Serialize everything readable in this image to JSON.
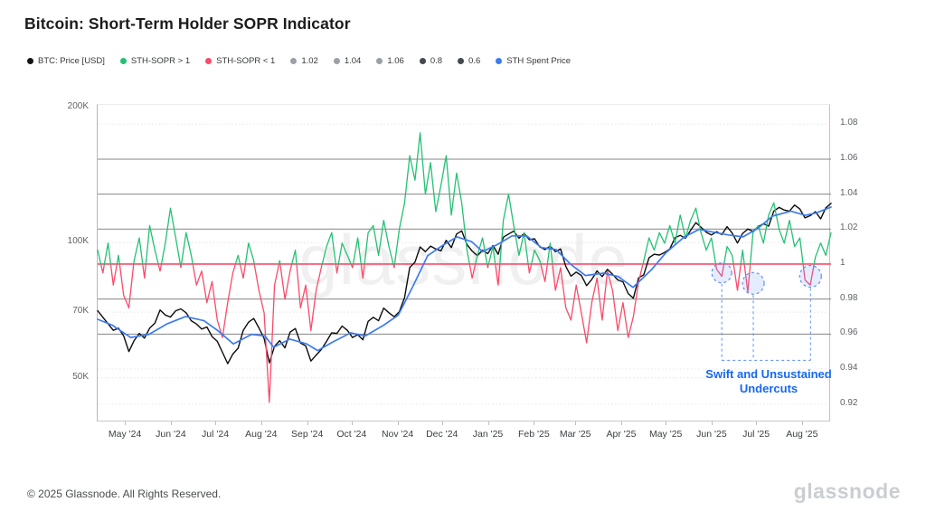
{
  "title": "Bitcoin: Short-Term Holder SOPR Indicator",
  "watermark": "glassnode",
  "footer": {
    "copyright": "© 2025 Glassnode. All Rights Reserved.",
    "brand": "glassnode"
  },
  "legend": [
    {
      "label": "BTC: Price [USD]",
      "color": "#141414"
    },
    {
      "label": "STH-SOPR > 1",
      "color": "#24c173"
    },
    {
      "label": "STH-SOPR < 1",
      "color": "#fb4a6a"
    },
    {
      "label": "1.02",
      "color": "#9aa0a6"
    },
    {
      "label": "1.04",
      "color": "#9aa0a6"
    },
    {
      "label": "1.06",
      "color": "#9aa0a6"
    },
    {
      "label": "0.8",
      "color": "#45494d"
    },
    {
      "label": "0.6",
      "color": "#45494d"
    },
    {
      "label": "STH Spent Price",
      "color": "#3d7bf0"
    }
  ],
  "annotation": {
    "line1": "Swift and Unsustained",
    "line2": "Undercuts",
    "color": "#1668f2"
  },
  "chart_data": {
    "type": "line",
    "title": "Bitcoin: Short-Term Holder SOPR Indicator",
    "x_range": [
      "Apr 2024",
      "Aug 2025"
    ],
    "x_ticks": [
      {
        "label": "May '24",
        "f": 0.0384
      },
      {
        "label": "Jun '24",
        "f": 0.101
      },
      {
        "label": "Jul '24",
        "f": 0.1616
      },
      {
        "label": "Aug '24",
        "f": 0.2242
      },
      {
        "label": "Sep '24",
        "f": 0.2869
      },
      {
        "label": "Oct '24",
        "f": 0.3475
      },
      {
        "label": "Nov '24",
        "f": 0.4101
      },
      {
        "label": "Dec '24",
        "f": 0.4707
      },
      {
        "label": "Jan '25",
        "f": 0.5333
      },
      {
        "label": "Feb '25",
        "f": 0.596
      },
      {
        "label": "Mar '25",
        "f": 0.6525
      },
      {
        "label": "Apr '25",
        "f": 0.7152
      },
      {
        "label": "May '25",
        "f": 0.7758
      },
      {
        "label": "Jun '25",
        "f": 0.8384
      },
      {
        "label": "Jul '25",
        "f": 0.899
      },
      {
        "label": "Aug '25",
        "f": 0.9616
      }
    ],
    "price_axis": {
      "scale": "log",
      "unit": "USD thousands",
      "domain": [
        39.8,
        202.5
      ],
      "ticks": [
        {
          "v": 200,
          "label": "200K"
        },
        {
          "v": 100,
          "label": "100K"
        },
        {
          "v": 70,
          "label": "70K"
        },
        {
          "v": 50,
          "label": "50K"
        }
      ],
      "dotted_gridlines": [
        100,
        70,
        50
      ]
    },
    "sopr_axis": {
      "scale": "linear",
      "domain": [
        0.9095,
        1.091
      ],
      "ticks": [
        {
          "v": 1.08,
          "label": "1.08"
        },
        {
          "v": 1.06,
          "label": "1.06"
        },
        {
          "v": 1.04,
          "label": "1.04"
        },
        {
          "v": 1.02,
          "label": "1.02"
        },
        {
          "v": 1.0,
          "label": "1"
        },
        {
          "v": 0.98,
          "label": "0.98"
        },
        {
          "v": 0.96,
          "label": "0.96"
        },
        {
          "v": 0.94,
          "label": "0.94"
        },
        {
          "v": 0.92,
          "label": "0.92"
        }
      ],
      "solid_gridlines": [
        1.06,
        1.04,
        1.02,
        0.98,
        0.96
      ],
      "dotted_gridlines": [
        1.08,
        0.94,
        0.92
      ],
      "unity_line": 1.0,
      "unity_color": "#fb4a6a",
      "axis_line_color": "#f7a8b6"
    },
    "series": [
      {
        "name": "BTC: Price [USD]",
        "axis": "price",
        "color": "#0c0c0c",
        "width": 1.4,
        "values": [
          70.5,
          68.2,
          66.0,
          63.8,
          64.5,
          62.0,
          57.2,
          60.5,
          62.8,
          61.3,
          64.5,
          66.2,
          70.8,
          69.0,
          68.3,
          70.5,
          71.2,
          69.8,
          67.0,
          65.9,
          64.2,
          64.9,
          61.8,
          60.3,
          57.0,
          53.8,
          56.5,
          58.2,
          63.8,
          66.5,
          67.8,
          64.6,
          61.2,
          54.0,
          58.8,
          60.5,
          58.3,
          63.2,
          64.4,
          59.8,
          58.9,
          54.5,
          56.2,
          57.8,
          60.3,
          63.0,
          62.8,
          65.2,
          63.8,
          61.5,
          62.4,
          60.8,
          66.8,
          68.2,
          67.0,
          71.5,
          69.8,
          68.4,
          70.2,
          75.5,
          88.0,
          90.5,
          97.8,
          95.5,
          98.2,
          96.8,
          95.9,
          101.2,
          97.5,
          104.5,
          106.2,
          99.0,
          95.8,
          93.5,
          96.2,
          94.5,
          98.5,
          94.2,
          102.8,
          104.5,
          106.1,
          102.3,
          104.8,
          101.5,
          102.0,
          97.8,
          96.5,
          98.2,
          95.5,
          96.8,
          88.5,
          84.2,
          86.0,
          84.5,
          80.2,
          82.8,
          86.5,
          84.0,
          87.2,
          85.0,
          82.6,
          81.8,
          77.0,
          75.2,
          83.5,
          84.8,
          92.5,
          94.2,
          93.8,
          95.1,
          96.8,
          102.5,
          103.8,
          102.2,
          106.5,
          110.8,
          108.2,
          105.5,
          104.0,
          105.8,
          104.2,
          108.5,
          105.0,
          99.8,
          104.8,
          107.2,
          106.0,
          108.5,
          110.2,
          108.8,
          117.5,
          119.8,
          118.2,
          117.5,
          121.2,
          118.8,
          113.5,
          114.8,
          117.2,
          113.0,
          119.5,
          122.3
        ]
      },
      {
        "name": "STH-SOPR",
        "axis": "sopr",
        "threshold": 1,
        "color_above": "#24c173",
        "color_below": "#fb4a6a",
        "width": 1.3,
        "values": [
          1.008,
          0.995,
          1.012,
          0.988,
          1.005,
          0.982,
          0.975,
          1.002,
          1.015,
          0.992,
          1.022,
          1.008,
          0.996,
          1.012,
          1.032,
          1.015,
          0.998,
          1.018,
          1.005,
          0.988,
          0.996,
          0.978,
          0.99,
          0.968,
          0.958,
          0.978,
          0.995,
          1.005,
          0.992,
          1.012,
          1.002,
          0.985,
          0.972,
          0.921,
          0.988,
          1.002,
          0.98,
          0.996,
          1.008,
          0.975,
          0.988,
          0.962,
          0.985,
          0.998,
          1.01,
          1.018,
          0.995,
          1.012,
          1.005,
          0.998,
          1.015,
          0.992,
          1.018,
          1.022,
          1.005,
          1.025,
          1.01,
          0.998,
          1.02,
          1.035,
          1.062,
          1.048,
          1.075,
          1.04,
          1.058,
          1.03,
          1.045,
          1.062,
          1.028,
          1.052,
          1.035,
          1.008,
          0.992,
          1.005,
          1.015,
          0.998,
          1.01,
          0.988,
          1.025,
          1.04,
          1.022,
          1.005,
          1.018,
          0.995,
          1.008,
          1.002,
          0.99,
          1.012,
          0.985,
          0.998,
          0.975,
          0.968,
          0.988,
          0.972,
          0.955,
          0.978,
          0.992,
          0.968,
          0.996,
          0.985,
          0.962,
          0.978,
          0.958,
          0.97,
          0.99,
          1.002,
          1.015,
          1.008,
          1.018,
          1.012,
          1.022,
          1.012,
          1.028,
          1.015,
          1.025,
          1.032,
          1.018,
          1.008,
          1.015,
          0.997,
          0.993,
          1.01,
          1.005,
          0.985,
          1.008,
          0.984,
          1.018,
          1.022,
          1.012,
          1.028,
          1.035,
          1.02,
          1.012,
          1.025,
          1.01,
          1.015,
          0.991,
          0.988,
          1.004,
          1.012,
          1.005,
          1.018
        ]
      },
      {
        "name": "STH Spent Price",
        "axis": "price",
        "color": "#3d7bf0",
        "width": 1.7,
        "points": [
          [
            0.0,
            67.5
          ],
          [
            0.02,
            65.5
          ],
          [
            0.045,
            61.5
          ],
          [
            0.07,
            62.5
          ],
          [
            0.095,
            66.0
          ],
          [
            0.12,
            68.5
          ],
          [
            0.145,
            67.0
          ],
          [
            0.165,
            63.5
          ],
          [
            0.185,
            59.5
          ],
          [
            0.21,
            62.5
          ],
          [
            0.228,
            62.0
          ],
          [
            0.24,
            58.5
          ],
          [
            0.262,
            61.0
          ],
          [
            0.285,
            59.5
          ],
          [
            0.3,
            57.5
          ],
          [
            0.32,
            60.0
          ],
          [
            0.345,
            63.0
          ],
          [
            0.365,
            62.0
          ],
          [
            0.39,
            65.5
          ],
          [
            0.41,
            69.0
          ],
          [
            0.43,
            80.0
          ],
          [
            0.45,
            93.5
          ],
          [
            0.47,
            98.5
          ],
          [
            0.49,
            103.0
          ],
          [
            0.51,
            100.5
          ],
          [
            0.525,
            95.5
          ],
          [
            0.545,
            99.0
          ],
          [
            0.565,
            103.5
          ],
          [
            0.585,
            103.5
          ],
          [
            0.605,
            97.5
          ],
          [
            0.625,
            96.5
          ],
          [
            0.645,
            89.5
          ],
          [
            0.665,
            84.5
          ],
          [
            0.69,
            85.5
          ],
          [
            0.71,
            84.0
          ],
          [
            0.73,
            79.5
          ],
          [
            0.755,
            87.0
          ],
          [
            0.775,
            95.0
          ],
          [
            0.8,
            103.0
          ],
          [
            0.82,
            107.0
          ],
          [
            0.84,
            105.5
          ],
          [
            0.86,
            104.0
          ],
          [
            0.88,
            103.0
          ],
          [
            0.9,
            107.5
          ],
          [
            0.92,
            114.5
          ],
          [
            0.945,
            117.5
          ],
          [
            0.965,
            115.0
          ],
          [
            0.98,
            116.5
          ],
          [
            1.0,
            120.0
          ]
        ]
      }
    ],
    "annotation_circles": [
      {
        "f": 0.851,
        "sopr": 0.995,
        "r": 11
      },
      {
        "f": 0.894,
        "sopr": 0.989,
        "r": 12
      },
      {
        "f": 0.972,
        "sopr": 0.993,
        "r": 12
      }
    ],
    "annotation_bracket": {
      "sopr_level": 0.945,
      "color": "#5b8ff7"
    },
    "legend_position": "top-left",
    "grid": true
  }
}
